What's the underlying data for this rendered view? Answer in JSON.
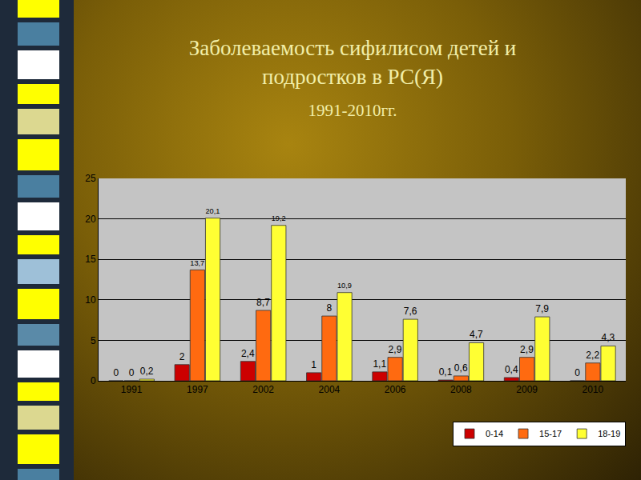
{
  "chart_data": {
    "type": "bar",
    "title": "Заболеваемость сифилисом детей и подростков в РС(Я)",
    "subtitle": "1991-2010гг.",
    "categories": [
      "1991",
      "1997",
      "2002",
      "2004",
      "2006",
      "2008",
      "2009",
      "2010"
    ],
    "series": [
      {
        "name": "0-14",
        "color": "#cc0000",
        "values": [
          0,
          2,
          2.4,
          1,
          1.1,
          0.1,
          0.4,
          0
        ],
        "value_labels": [
          "0",
          "2",
          "2,4",
          "1",
          "1,1",
          "0,1",
          "0,4",
          "0"
        ]
      },
      {
        "name": "15-17",
        "color": "#ff6a10",
        "values": [
          0,
          13.7,
          8.7,
          8,
          2.9,
          0.6,
          2.9,
          2.2
        ],
        "value_labels": [
          "0",
          "13,7",
          "8,7",
          "8",
          "2,9",
          "0,6",
          "2,9",
          "2,2"
        ]
      },
      {
        "name": "18-19",
        "color": "#ffff33",
        "values": [
          0.2,
          20.1,
          19.2,
          10.9,
          7.6,
          4.7,
          7.9,
          4.3
        ],
        "value_labels": [
          "0,2",
          "20,1",
          "19,2",
          "10,9",
          "7,6",
          "4,7",
          "7,9",
          "4,3"
        ]
      }
    ],
    "ylim": [
      0,
      25
    ],
    "yticks": [
      0,
      5,
      10,
      15,
      20,
      25
    ],
    "grid": true,
    "legend": "lower right",
    "data_labels": true
  }
}
